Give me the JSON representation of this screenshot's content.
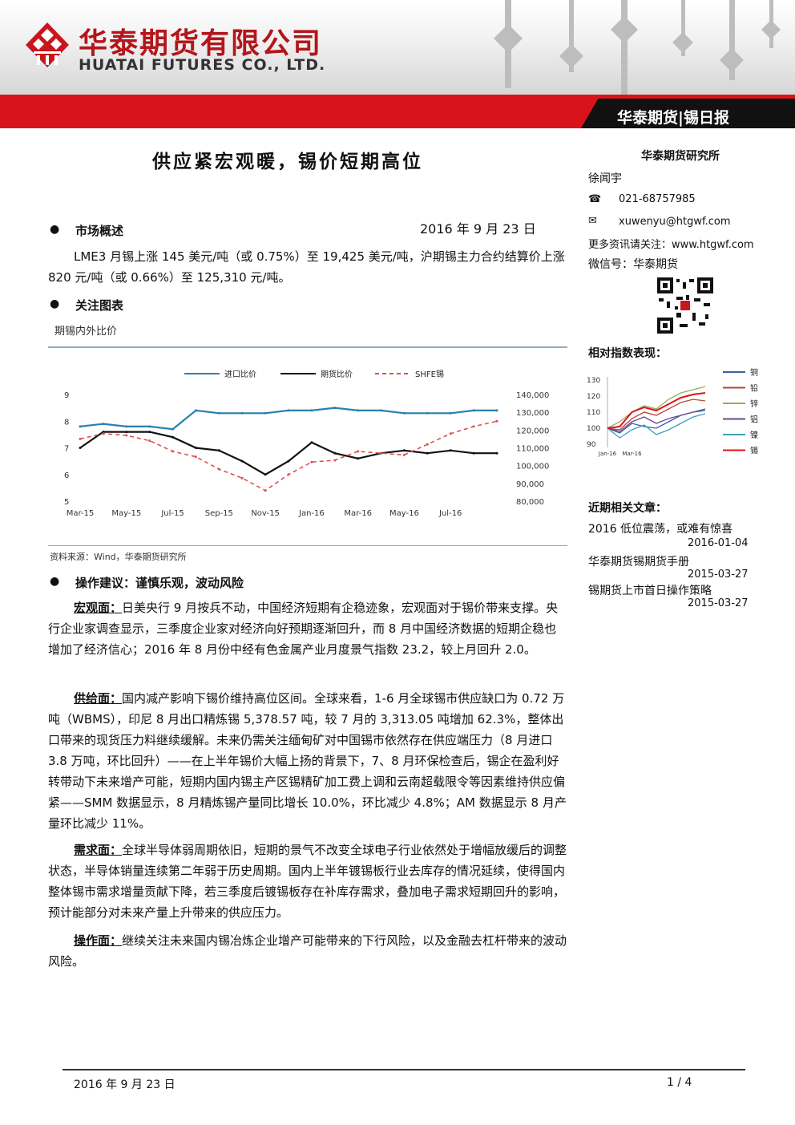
{
  "header": {
    "company_cn": "华泰期货有限公司",
    "company_en": "HUATAI FUTURES CO., LTD.",
    "report_tag": "华泰期货|锡日报",
    "brand_red": "#d8141a"
  },
  "title": "供应紧宏观暖，锡价短期高位",
  "date": "2016 年 9 月 23 日",
  "market": {
    "heading": "市场概述",
    "text": "LME3 月锡上涨 145 美元/吨（或 0.75%）至 19,425 美元/吨，沪期锡主力合约结算价上涨 820 元/吨（或 0.66%）至 125,310 元/吨。"
  },
  "focus": {
    "heading": "关注图表",
    "chart_caption": "期锡内外比价",
    "source": "资料来源：Wind，华泰期货研究所"
  },
  "advice": {
    "heading": "操作建议：谨慎乐观，波动风险",
    "paras": [
      {
        "label": "宏观面：",
        "text": "日美央行 9 月按兵不动，中国经济短期有企稳迹象，宏观面对于锡价带来支撑。央行企业家调查显示，三季度企业家对经济向好预期逐渐回升，而 8 月中国经济数据的短期企稳也增加了经济信心；2016 年 8 月份中经有色金属产业月度景气指数 23.2，较上月回升 2.0。"
      },
      {
        "label": "供给面：",
        "text": "国内减产影响下锡价维持高位区间。全球来看，1-6 月全球锡市供应缺口为 0.72 万吨（WBMS），印尼 8 月出口精炼锡 5,378.57 吨，较 7 月的 3,313.05 吨增加 62.3%，整体出口带来的现货压力料继续缓解。未来仍需关注缅甸矿对中国锡市依然存在供应端压力（8 月进口 3.8 万吨，环比回升）——在上半年锡价大幅上扬的背景下，7、8 月环保检查后，锡企在盈利好转带动下未来增产可能，短期内国内锡主产区锡精矿加工费上调和云南超载限令等因素维持供应偏紧——SMM 数据显示，8 月精炼锡产量同比增长 10.0%，环比减少 4.8%；AM 数据显示 8 月产量环比减少 11%。"
      },
      {
        "label": "需求面：",
        "text": "全球半导体弱周期依旧，短期的景气不改变全球电子行业依然处于增幅放缓后的调整状态，半导体销量连续第二年弱于历史周期。国内上半年镀锡板行业去库存的情况延续，使得国内整体锡市需求增量贡献下降，若三季度后镀锡板存在补库存需求，叠加电子需求短期回升的影响，预计能部分对未来产量上升带来的供应压力。"
      },
      {
        "label": "操作面：",
        "text": "继续关注未来国内锡冶炼企业增产可能带来的下行风险，以及金融去杠杆带来的波动风险。"
      }
    ]
  },
  "sidebar": {
    "institute": "华泰期货研究所",
    "analyst": "徐闻宇",
    "phone": "021-68757985",
    "email": "xuwenyu@htgwf.com",
    "more_info": "更多资讯请关注：www.htgwf.com",
    "wechat": "微信号：华泰期货",
    "index_heading": "相对指数表现：",
    "recent_heading": "近期相关文章：",
    "articles": [
      {
        "title": "2016 低位震荡，或难有惊喜",
        "date": "2016-01-04"
      },
      {
        "title": "华泰期货锡期货手册",
        "date": "2015-03-27"
      },
      {
        "title": "锡期货上市首日操作策略",
        "date": "2015-03-27"
      }
    ]
  },
  "footer": {
    "date": "2016 年 9 月 23 日",
    "page": "1 / 4"
  },
  "chart_data": [
    {
      "type": "line",
      "title": "",
      "x": [
        "Mar-15",
        "Apr-15",
        "May-15",
        "Jun-15",
        "Jul-15",
        "Aug-15",
        "Sep-15",
        "Oct-15",
        "Nov-15",
        "Dec-15",
        "Jan-16",
        "Feb-16",
        "Mar-16",
        "Apr-16",
        "May-16",
        "Jun-16",
        "Jul-16",
        "Aug-16",
        "Sep-16"
      ],
      "x_tick_labels": [
        "Mar-15",
        "May-15",
        "Jul-15",
        "Sep-15",
        "Nov-15",
        "Jan-16",
        "Mar-16",
        "May-16",
        "Jul-16"
      ],
      "y_left_ticks": [
        "5",
        "6",
        "7",
        "8",
        "9"
      ],
      "y_right_ticks": [
        "80,000",
        "90,000",
        "100,000",
        "110,000",
        "120,000",
        "130,000",
        "140,000"
      ],
      "ylim_left": [
        5,
        9
      ],
      "ylim_right": [
        80000,
        140000
      ],
      "legend_position": "top",
      "series": [
        {
          "name": "进口比价",
          "axis": "left",
          "color": "#2a7fb0",
          "style": "solid",
          "values": [
            7.8,
            7.9,
            7.8,
            7.8,
            7.7,
            8.4,
            8.3,
            8.3,
            8.3,
            8.4,
            8.4,
            8.5,
            8.4,
            8.4,
            8.3,
            8.3,
            8.3,
            8.4,
            8.4
          ]
        },
        {
          "name": "期货比价",
          "axis": "left",
          "color": "#111111",
          "style": "solid",
          "values": [
            7.0,
            7.6,
            7.6,
            7.6,
            7.4,
            7.0,
            6.9,
            6.5,
            6.0,
            6.5,
            7.2,
            6.8,
            6.6,
            6.8,
            6.9,
            6.8,
            6.9,
            6.8,
            6.8
          ]
        },
        {
          "name": "SHFE锡",
          "axis": "right",
          "color": "#e05050",
          "style": "dashed",
          "values": [
            115000,
            118000,
            117000,
            114000,
            108000,
            105000,
            98000,
            93000,
            86000,
            95000,
            102000,
            103000,
            108000,
            107000,
            106000,
            112000,
            118000,
            122000,
            125000
          ]
        }
      ]
    },
    {
      "type": "line",
      "title": "",
      "x": [
        "Jan-16",
        "Feb-16",
        "Mar-16",
        "Apr-16",
        "May-16",
        "Jun-16",
        "Jul-16",
        "Aug-16",
        "Sep-16"
      ],
      "x_tick_labels": [
        "Jan-16",
        "Mar-16"
      ],
      "y_ticks": [
        "90",
        "100",
        "110",
        "120",
        "130"
      ],
      "ylim": [
        88,
        132
      ],
      "legend_position": "right",
      "series": [
        {
          "name": "铜",
          "color": "#3a5ea8",
          "values": [
            100,
            97,
            103,
            101,
            100,
            104,
            108,
            110,
            112
          ]
        },
        {
          "name": "铅",
          "color": "#b8463c",
          "values": [
            100,
            99,
            106,
            110,
            108,
            112,
            116,
            118,
            117
          ]
        },
        {
          "name": "锌",
          "color": "#8fb25a",
          "values": [
            100,
            104,
            110,
            114,
            112,
            118,
            122,
            124,
            126
          ]
        },
        {
          "name": "铝",
          "color": "#6a4a8c",
          "values": [
            100,
            98,
            104,
            107,
            103,
            106,
            108,
            110,
            111
          ]
        },
        {
          "name": "镍",
          "color": "#3aa0c0",
          "values": [
            100,
            94,
            99,
            102,
            96,
            99,
            103,
            107,
            109
          ]
        },
        {
          "name": "锡",
          "color": "#e0141a",
          "values": [
            100,
            101,
            110,
            113,
            111,
            115,
            119,
            121,
            122
          ]
        }
      ]
    }
  ]
}
